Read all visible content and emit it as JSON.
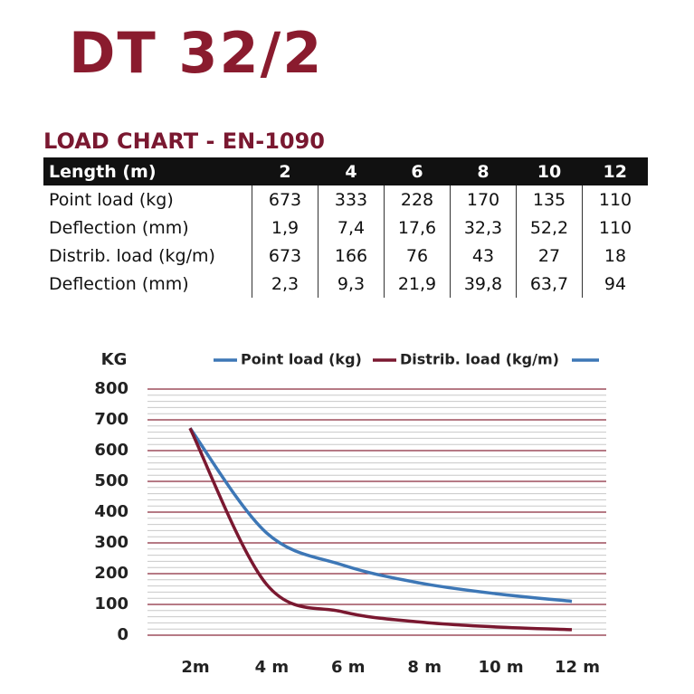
{
  "title": "DT 32/2",
  "subtitle": "LOAD CHART - EN-1090",
  "table": {
    "header": [
      "Length (m)",
      "2",
      "4",
      "6",
      "8",
      "10",
      "12"
    ],
    "rows": [
      [
        "Point load (kg)",
        "673",
        "333",
        "228",
        "170",
        "135",
        "110"
      ],
      [
        "Deflection (mm)",
        "1,9",
        "7,4",
        "17,6",
        "32,3",
        "52,2",
        "110"
      ],
      [
        "Distrib. load (kg/m)",
        "673",
        "166",
        "76",
        "43",
        "27",
        "18"
      ],
      [
        "Deflection (mm)",
        "2,3",
        "9,3",
        "21,9",
        "39,8",
        "63,7",
        "94"
      ]
    ]
  },
  "chart_data": {
    "type": "line",
    "y_label": "KG",
    "categories": [
      "2m",
      "4 m",
      "6 m",
      "8 m",
      "10 m",
      "12 m"
    ],
    "series": [
      {
        "name": "Point load (kg)",
        "color": "#3d77b6",
        "values": [
          673,
          333,
          228,
          170,
          135,
          110
        ]
      },
      {
        "name": "Distrib. load (kg/m)",
        "color": "#7a1830",
        "values": [
          673,
          166,
          76,
          43,
          27,
          18
        ]
      }
    ],
    "ylim": [
      0,
      800
    ],
    "yticks": [
      0,
      100,
      200,
      300,
      400,
      500,
      600,
      700,
      800
    ],
    "grid": true,
    "grid_color": "#8a2a3c"
  }
}
